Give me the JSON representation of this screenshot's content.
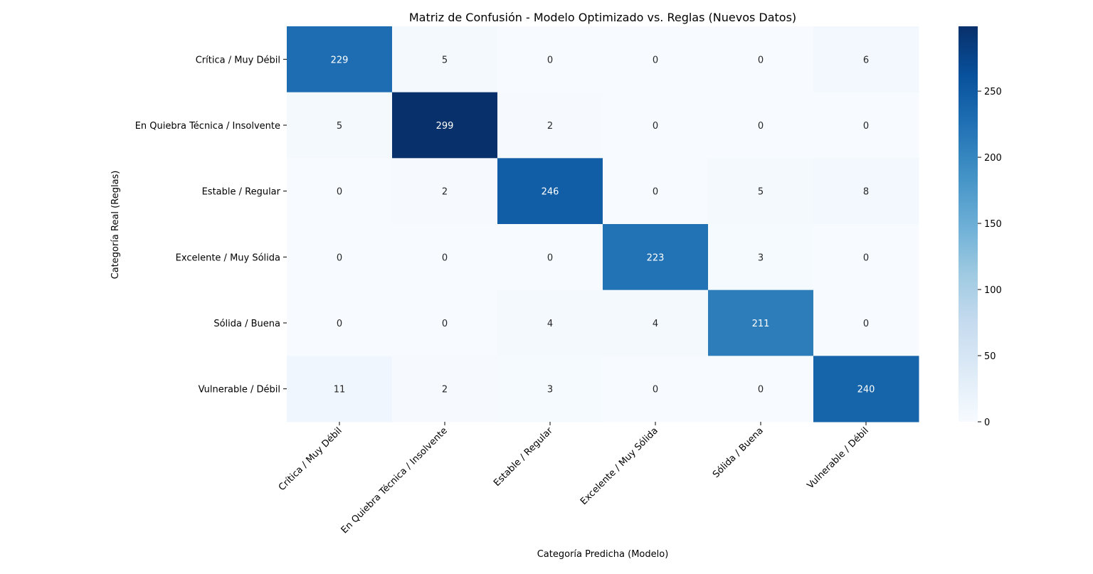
{
  "chart_data": {
    "type": "heatmap",
    "title": "Matriz de Confusión - Modelo Optimizado vs. Reglas (Nuevos Datos)",
    "xlabel": "Categoría Predicha (Modelo)",
    "ylabel": "Categoría Real (Reglas)",
    "x_categories": [
      "Crítica / Muy Débil",
      "En Quiebra Técnica / Insolvente",
      "Estable / Regular",
      "Excelente / Muy Sólida",
      "Sólida / Buena",
      "Vulnerable / Débil"
    ],
    "y_categories": [
      "Crítica / Muy Débil",
      "En Quiebra Técnica / Insolvente",
      "Estable / Regular",
      "Excelente / Muy Sólida",
      "Sólida / Buena",
      "Vulnerable / Débil"
    ],
    "matrix": [
      [
        229,
        5,
        0,
        0,
        0,
        6
      ],
      [
        5,
        299,
        2,
        0,
        0,
        0
      ],
      [
        0,
        2,
        246,
        0,
        5,
        8
      ],
      [
        0,
        0,
        0,
        223,
        3,
        0
      ],
      [
        0,
        0,
        4,
        4,
        211,
        0
      ],
      [
        11,
        2,
        3,
        0,
        0,
        240
      ]
    ],
    "colorbar": {
      "colormap": "Blues",
      "min": 0,
      "max": 299,
      "ticks": [
        0,
        50,
        100,
        150,
        200,
        250
      ]
    },
    "grid": false,
    "legend": "colorbar-right"
  }
}
